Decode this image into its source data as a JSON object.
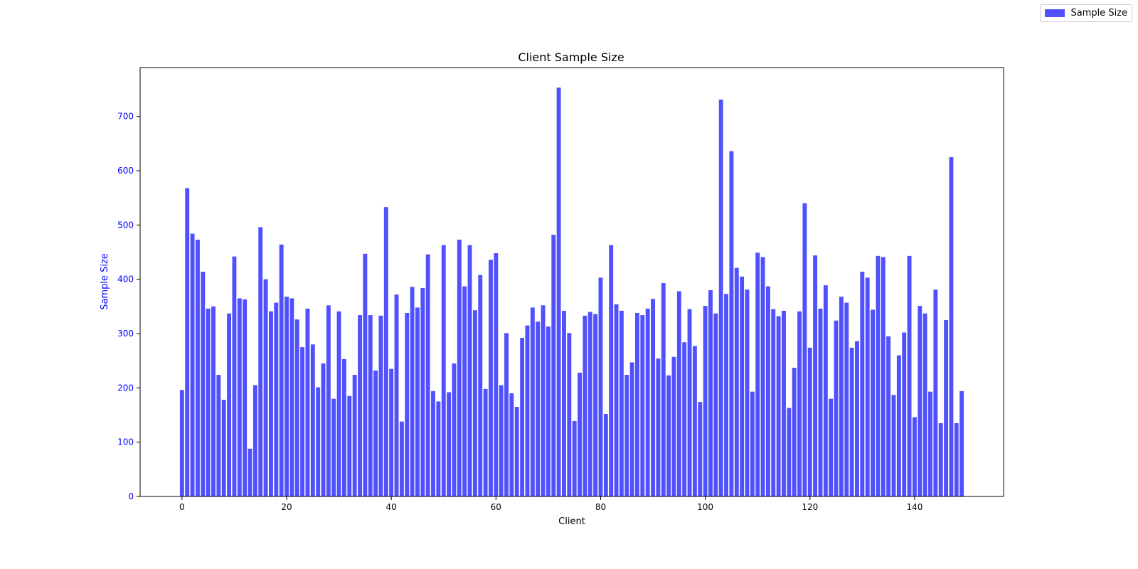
{
  "chart_data": {
    "type": "bar",
    "title": "Client Sample Size",
    "xlabel": "Client",
    "ylabel": "Sample Size",
    "xlim": [
      -8,
      157
    ],
    "ylim": [
      0,
      790
    ],
    "xticks": [
      0,
      20,
      40,
      60,
      80,
      100,
      120,
      140
    ],
    "yticks": [
      0,
      100,
      200,
      300,
      400,
      500,
      600,
      700
    ],
    "grid": false,
    "legend": "top-right",
    "bar_color": "#5050ff",
    "ylabel_color": "#0000ff",
    "series": [
      {
        "name": "Sample Size",
        "values": [
          196,
          568,
          484,
          473,
          414,
          346,
          350,
          224,
          178,
          337,
          442,
          365,
          363,
          88,
          205,
          496,
          400,
          341,
          357,
          464,
          368,
          365,
          326,
          275,
          346,
          280,
          201,
          245,
          352,
          180,
          341,
          253,
          185,
          224,
          334,
          447,
          334,
          232,
          333,
          533,
          235,
          372,
          138,
          338,
          386,
          348,
          384,
          446,
          194,
          175,
          463,
          192,
          245,
          473,
          387,
          463,
          343,
          408,
          198,
          436,
          448,
          205,
          301,
          190,
          165,
          292,
          315,
          348,
          322,
          352,
          313,
          482,
          753,
          342,
          301,
          139,
          228,
          333,
          340,
          336,
          403,
          152,
          463,
          354,
          342,
          224,
          247,
          338,
          334,
          346,
          364,
          254,
          393,
          223,
          257,
          378,
          284,
          345,
          277,
          174,
          351,
          380,
          337,
          731,
          373,
          636,
          421,
          405,
          381,
          193,
          449,
          441,
          387,
          345,
          332,
          342,
          163,
          237,
          341,
          540,
          274,
          444,
          346,
          389,
          180,
          324,
          368,
          357,
          274,
          286,
          414,
          403,
          344,
          443,
          441,
          295,
          187,
          260,
          302,
          443,
          146,
          351,
          337,
          193,
          381,
          135,
          325,
          625,
          135,
          194
        ]
      }
    ]
  }
}
